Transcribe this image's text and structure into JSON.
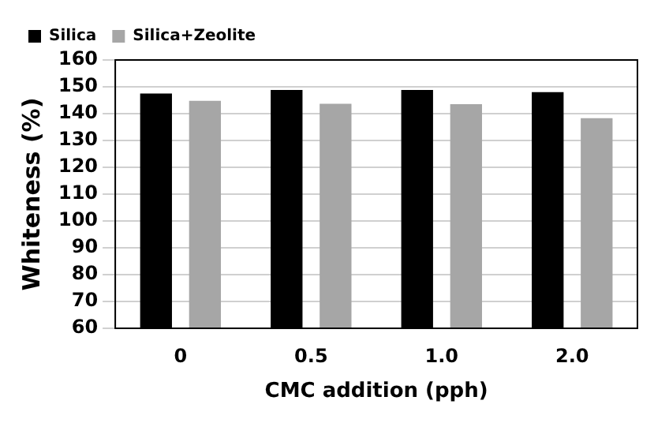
{
  "chart_data": {
    "type": "bar",
    "xlabel": "CMC addition (pph)",
    "ylabel": "Whiteness (%)",
    "categories": [
      "0",
      "0.5",
      "1.0",
      "2.0"
    ],
    "series": [
      {
        "name": "Silica",
        "color": "#000000",
        "values": [
          147.5,
          148.8,
          148.8,
          148
        ]
      },
      {
        "name": "Silica+Zeolite",
        "color": "#a6a6a6",
        "values": [
          144.8,
          143.7,
          143.5,
          138.3
        ]
      }
    ],
    "ylim": [
      60,
      160
    ],
    "yticks": [
      60,
      70,
      80,
      90,
      100,
      110,
      120,
      130,
      140,
      150,
      160
    ],
    "grid": "y",
    "legend": "top left"
  }
}
